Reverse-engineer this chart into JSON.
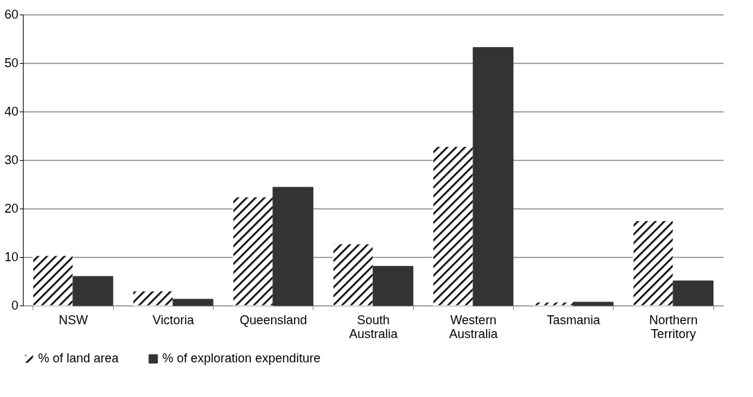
{
  "chart_data": {
    "type": "bar",
    "categories": [
      "NSW",
      "Victoria",
      "Queensland",
      "South Australia",
      "Western Australia",
      "Tasmania",
      "Northern Territory"
    ],
    "series": [
      {
        "name": "% of land area",
        "color": "#ffffff",
        "values": [
          10.3,
          3.0,
          22.4,
          12.7,
          32.8,
          0.7,
          17.5
        ]
      },
      {
        "name": "% of exploration expenditure",
        "color": "#333333",
        "values": [
          6.0,
          1.3,
          24.4,
          8.1,
          53.2,
          0.7,
          5.1
        ]
      }
    ],
    "ylim": [
      0,
      60
    ],
    "yticks": [
      0,
      10,
      20,
      30,
      40,
      50,
      60
    ],
    "grid": "y",
    "legend": "bottom"
  }
}
